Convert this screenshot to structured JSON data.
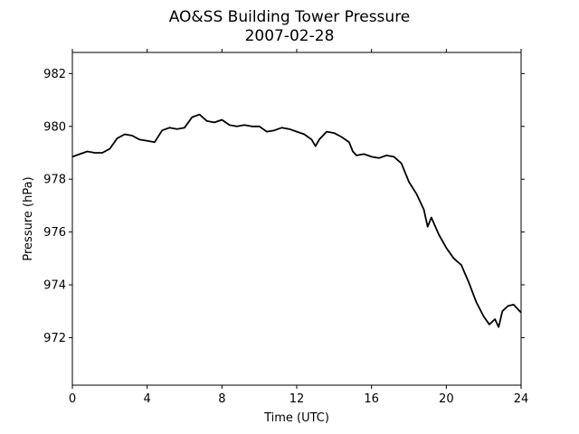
{
  "chart_data": {
    "type": "line",
    "title": "AO&SS Building Tower Pressure",
    "subtitle": "2007-02-28",
    "xlabel": "Time (UTC)",
    "ylabel": "Pressure (hPa)",
    "xlim": [
      0,
      24
    ],
    "ylim": [
      970.2,
      982.8
    ],
    "xticks": [
      0,
      4,
      8,
      12,
      16,
      20,
      24
    ],
    "yticks": [
      972,
      974,
      976,
      978,
      980,
      982
    ],
    "grid": false,
    "line_color": "#000000",
    "series": [
      {
        "x": [
          0,
          0.4,
          0.8,
          1.2,
          1.6,
          2.0,
          2.4,
          2.8,
          3.2,
          3.6,
          4.0,
          4.4,
          4.8,
          5.2,
          5.6,
          6.0,
          6.4,
          6.8,
          7.2,
          7.6,
          8.0,
          8.4,
          8.8,
          9.2,
          9.6,
          10.0,
          10.4,
          10.8,
          11.2,
          11.6,
          12.0,
          12.4,
          12.8,
          13.0,
          13.2,
          13.6,
          14.0,
          14.4,
          14.8,
          15.0,
          15.2,
          15.6,
          16.0,
          16.4,
          16.8,
          17.2,
          17.6,
          18.0,
          18.4,
          18.8,
          19.0,
          19.2,
          19.6,
          20.0,
          20.4,
          20.8,
          21.2,
          21.6,
          22.0,
          22.3,
          22.6,
          22.8,
          23.0,
          23.3,
          23.6,
          24.0
        ],
        "y": [
          978.85,
          978.95,
          979.05,
          979.0,
          979.0,
          979.15,
          979.55,
          979.7,
          979.65,
          979.5,
          979.45,
          979.4,
          979.85,
          979.95,
          979.9,
          979.95,
          980.35,
          980.45,
          980.2,
          980.15,
          980.25,
          980.05,
          980.0,
          980.05,
          980.0,
          980.0,
          979.8,
          979.85,
          979.95,
          979.9,
          979.8,
          979.7,
          979.5,
          979.25,
          979.5,
          979.8,
          979.75,
          979.6,
          979.4,
          979.05,
          978.9,
          978.95,
          978.85,
          978.8,
          978.9,
          978.85,
          978.6,
          977.9,
          977.45,
          976.85,
          976.2,
          976.55,
          975.9,
          975.4,
          975.0,
          974.75,
          974.1,
          973.35,
          972.8,
          972.5,
          972.7,
          972.4,
          973.0,
          973.2,
          973.25,
          972.95
        ]
      }
    ]
  }
}
